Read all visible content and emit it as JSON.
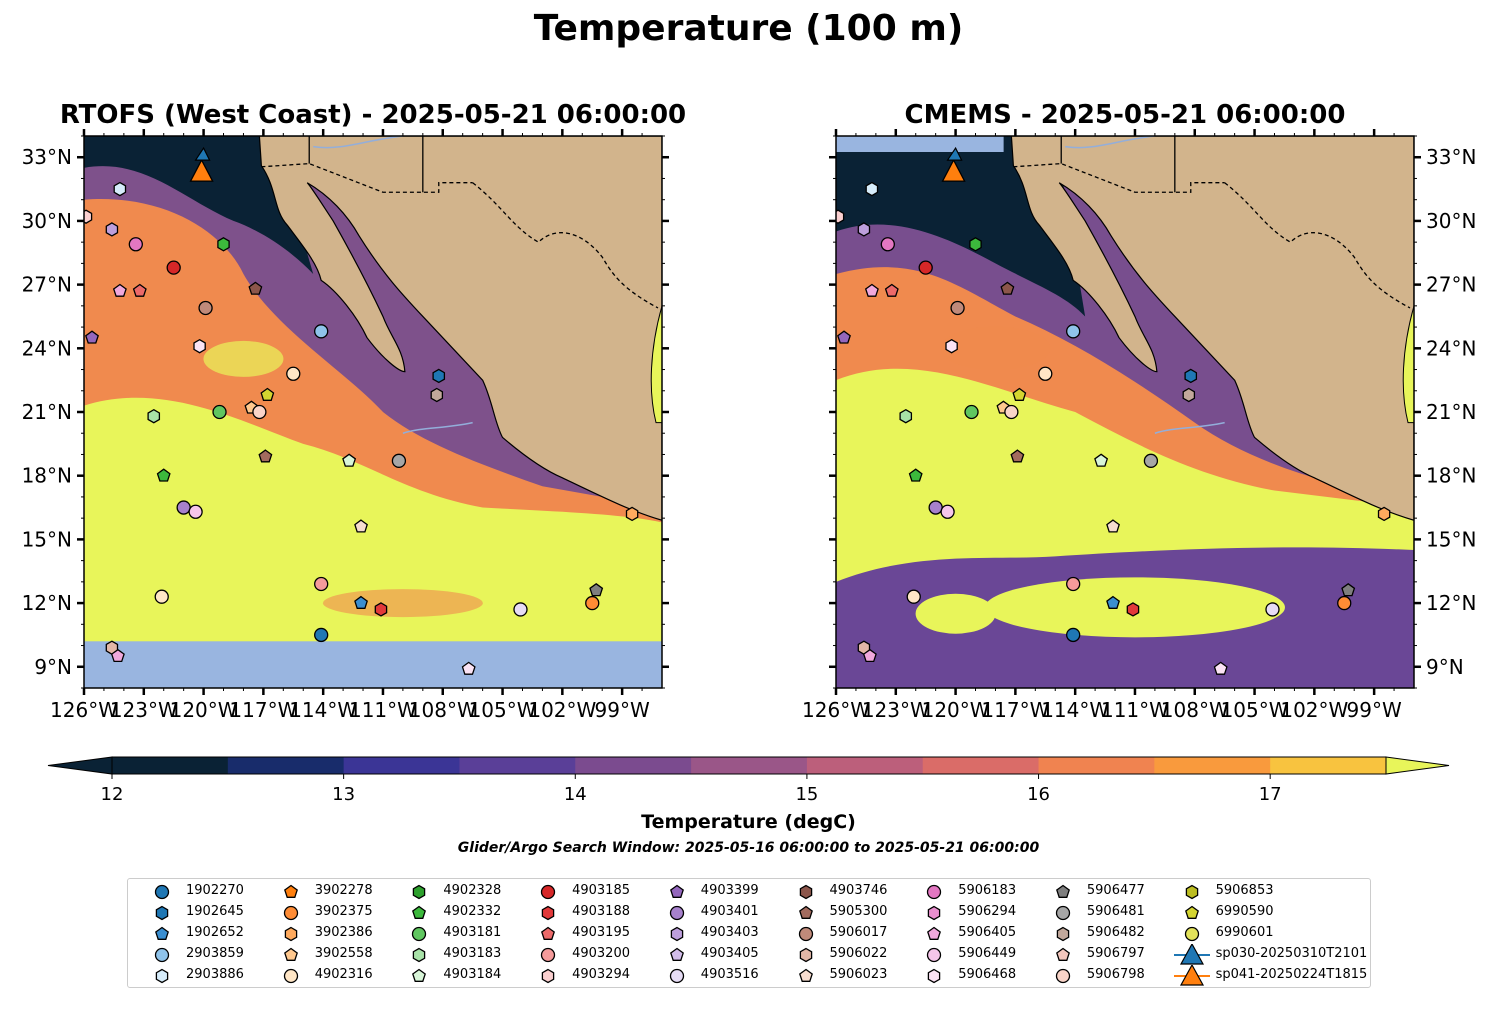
{
  "figure": {
    "title": "Temperature (100 m)",
    "panels": [
      {
        "title": "RTOFS (West Coast) - 2025-05-21 06:00:00",
        "model": "rtofs"
      },
      {
        "title": "CMEMS - 2025-05-21 06:00:00",
        "model": "cmems"
      }
    ],
    "lon_ticks": [
      "126°W",
      "123°W",
      "120°W",
      "117°W",
      "114°W",
      "111°W",
      "108°W",
      "105°W",
      "102°W",
      "99°W"
    ],
    "lat_ticks": [
      "33°N",
      "30°N",
      "27°N",
      "24°N",
      "21°N",
      "18°N",
      "15°N",
      "12°N",
      "9°N"
    ],
    "extent": {
      "lon": [
        -126,
        -97
      ],
      "lat": [
        8,
        34
      ]
    }
  },
  "colorbar": {
    "label": "Temperature (degC)",
    "ticks": [
      "12",
      "13",
      "14",
      "15",
      "16",
      "17"
    ],
    "range": [
      12,
      17.5
    ],
    "colors": [
      "#0a2235",
      "#182c6b",
      "#3b3596",
      "#5a3f98",
      "#7b4b8f",
      "#9a5688",
      "#bc5f7b",
      "#da6c68",
      "#f08350",
      "#f99a3d",
      "#f8c33f",
      "#e8f55a"
    ]
  },
  "search_window": "Glider/Argo Search Window: 2025-05-16 06:00:00 to 2025-05-21 06:00:00",
  "colors": {
    "land": "#d2b48c",
    "no_data": "#99b5e0",
    "warm": "#e8f55a",
    "mid": "#f08a4e",
    "cool": "#6a4796",
    "cold": "#0a2235"
  },
  "legend": [
    {
      "id": "1902270",
      "color": "#1f77b4",
      "marker": "circle"
    },
    {
      "id": "1902645",
      "color": "#1f77b4",
      "marker": "hexagon"
    },
    {
      "id": "1902652",
      "color": "#3a8ed0",
      "marker": "pentagon"
    },
    {
      "id": "2903859",
      "color": "#8fc3ea",
      "marker": "circle"
    },
    {
      "id": "2903886",
      "color": "#d6ecfa",
      "marker": "hexagon"
    },
    {
      "id": "3902278",
      "color": "#ff7f0e",
      "marker": "pentagon"
    },
    {
      "id": "3902375",
      "color": "#ff8c35",
      "marker": "circle"
    },
    {
      "id": "3902386",
      "color": "#ffaa5e",
      "marker": "hexagon"
    },
    {
      "id": "3902558",
      "color": "#ffc88e",
      "marker": "pentagon"
    },
    {
      "id": "4902316",
      "color": "#ffe6c6",
      "marker": "circle"
    },
    {
      "id": "4902328",
      "color": "#2ca02c",
      "marker": "hexagon"
    },
    {
      "id": "4902332",
      "color": "#3cb93c",
      "marker": "pentagon"
    },
    {
      "id": "4903181",
      "color": "#60c760",
      "marker": "circle"
    },
    {
      "id": "4903183",
      "color": "#a8e2a8",
      "marker": "hexagon"
    },
    {
      "id": "4903184",
      "color": "#d8f5d8",
      "marker": "pentagon"
    },
    {
      "id": "4903185",
      "color": "#d62728",
      "marker": "circle"
    },
    {
      "id": "4903188",
      "color": "#e2393a",
      "marker": "hexagon"
    },
    {
      "id": "4903195",
      "color": "#ec6a6a",
      "marker": "pentagon"
    },
    {
      "id": "4903200",
      "color": "#f59b9b",
      "marker": "circle"
    },
    {
      "id": "4903294",
      "color": "#fbd0d0",
      "marker": "hexagon"
    },
    {
      "id": "4903399",
      "color": "#9467bd",
      "marker": "pentagon"
    },
    {
      "id": "4903401",
      "color": "#a781cc",
      "marker": "circle"
    },
    {
      "id": "4903403",
      "color": "#bd9fdc",
      "marker": "hexagon"
    },
    {
      "id": "4903405",
      "color": "#d2bdea",
      "marker": "pentagon"
    },
    {
      "id": "4903516",
      "color": "#e6dcf5",
      "marker": "circle"
    },
    {
      "id": "4903746",
      "color": "#8c564b",
      "marker": "hexagon"
    },
    {
      "id": "5905300",
      "color": "#a36b5e",
      "marker": "pentagon"
    },
    {
      "id": "5906017",
      "color": "#c08a7a",
      "marker": "circle"
    },
    {
      "id": "5906022",
      "color": "#e3b7a7",
      "marker": "hexagon"
    },
    {
      "id": "5906023",
      "color": "#f6dccf",
      "marker": "pentagon"
    },
    {
      "id": "5906183",
      "color": "#e377c2",
      "marker": "circle"
    },
    {
      "id": "5906294",
      "color": "#ea8fcf",
      "marker": "hexagon"
    },
    {
      "id": "5906405",
      "color": "#f0a8dc",
      "marker": "pentagon"
    },
    {
      "id": "5906449",
      "color": "#f6c6ea",
      "marker": "circle"
    },
    {
      "id": "5906468",
      "color": "#fbe3f4",
      "marker": "hexagon"
    },
    {
      "id": "5906477",
      "color": "#7f7f7f",
      "marker": "pentagon"
    },
    {
      "id": "5906481",
      "color": "#a6a6a6",
      "marker": "circle"
    },
    {
      "id": "5906482",
      "color": "#c2a89b",
      "marker": "hexagon"
    },
    {
      "id": "5906797",
      "color": "#f4c7bd",
      "marker": "pentagon"
    },
    {
      "id": "5906798",
      "color": "#f9d4c8",
      "marker": "circle"
    },
    {
      "id": "5906853",
      "color": "#bcbd22",
      "marker": "hexagon"
    },
    {
      "id": "6990590",
      "color": "#d4d530",
      "marker": "pentagon"
    },
    {
      "id": "6990601",
      "color": "#e3e35a",
      "marker": "circle"
    },
    {
      "id": "sp030-20250310T2101",
      "color": "#1f77b4",
      "marker": "triangle"
    },
    {
      "id": "sp041-20250224T1815",
      "color": "#ff7f0e",
      "marker": "triangle"
    }
  ],
  "floats": [
    {
      "lon": -124.2,
      "lat": 31.5,
      "color": "#d6ecfa",
      "marker": "hexagon"
    },
    {
      "lon": -125.9,
      "lat": 30.2,
      "color": "#fbd0d0",
      "marker": "hexagon"
    },
    {
      "lon": -124.6,
      "lat": 29.6,
      "color": "#bd9fdc",
      "marker": "hexagon"
    },
    {
      "lon": -123.4,
      "lat": 28.9,
      "color": "#e377c2",
      "marker": "circle"
    },
    {
      "lon": -119.0,
      "lat": 28.9,
      "color": "#3cb93c",
      "marker": "hexagon"
    },
    {
      "lon": -121.5,
      "lat": 27.8,
      "color": "#d62728",
      "marker": "circle"
    },
    {
      "lon": -124.2,
      "lat": 26.7,
      "color": "#f0a8dc",
      "marker": "pentagon"
    },
    {
      "lon": -123.2,
      "lat": 26.7,
      "color": "#ec6a6a",
      "marker": "pentagon"
    },
    {
      "lon": -117.4,
      "lat": 26.8,
      "color": "#8c564b",
      "marker": "pentagon"
    },
    {
      "lon": -119.9,
      "lat": 25.9,
      "color": "#c08a7a",
      "marker": "circle"
    },
    {
      "lon": -125.6,
      "lat": 24.5,
      "color": "#9467bd",
      "marker": "pentagon"
    },
    {
      "lon": -120.2,
      "lat": 24.1,
      "color": "#fbe3f4",
      "marker": "hexagon"
    },
    {
      "lon": -114.1,
      "lat": 24.8,
      "color": "#8fc3ea",
      "marker": "circle"
    },
    {
      "lon": -115.5,
      "lat": 22.8,
      "color": "#ffe6c6",
      "marker": "circle"
    },
    {
      "lon": -108.2,
      "lat": 22.7,
      "color": "#1f77b4",
      "marker": "hexagon"
    },
    {
      "lon": -108.3,
      "lat": 21.8,
      "color": "#c2a89b",
      "marker": "hexagon"
    },
    {
      "lon": -116.8,
      "lat": 21.8,
      "color": "#d4d530",
      "marker": "pentagon"
    },
    {
      "lon": -117.6,
      "lat": 21.2,
      "color": "#ffc88e",
      "marker": "pentagon"
    },
    {
      "lon": -117.2,
      "lat": 21.0,
      "color": "#f9d4c8",
      "marker": "circle"
    },
    {
      "lon": -119.2,
      "lat": 21.0,
      "color": "#60c760",
      "marker": "circle"
    },
    {
      "lon": -122.5,
      "lat": 20.8,
      "color": "#a8e2a8",
      "marker": "hexagon"
    },
    {
      "lon": -116.9,
      "lat": 18.9,
      "color": "#a36b5e",
      "marker": "pentagon"
    },
    {
      "lon": -112.7,
      "lat": 18.7,
      "color": "#d8f5d8",
      "marker": "pentagon"
    },
    {
      "lon": -110.2,
      "lat": 18.7,
      "color": "#a6a6a6",
      "marker": "circle"
    },
    {
      "lon": -122.0,
      "lat": 18.0,
      "color": "#3cb93c",
      "marker": "pentagon"
    },
    {
      "lon": -121.0,
      "lat": 16.5,
      "color": "#a781cc",
      "marker": "circle"
    },
    {
      "lon": -120.4,
      "lat": 16.3,
      "color": "#f6c6ea",
      "marker": "circle"
    },
    {
      "lon": -112.1,
      "lat": 15.6,
      "color": "#f6dccf",
      "marker": "pentagon"
    },
    {
      "lon": -98.5,
      "lat": 16.2,
      "color": "#ffaa5e",
      "marker": "hexagon"
    },
    {
      "lon": -114.1,
      "lat": 12.9,
      "color": "#f59b9b",
      "marker": "circle"
    },
    {
      "lon": -122.1,
      "lat": 12.3,
      "color": "#ffe6c6",
      "marker": "circle"
    },
    {
      "lon": -112.1,
      "lat": 12.0,
      "color": "#3a8ed0",
      "marker": "pentagon"
    },
    {
      "lon": -111.1,
      "lat": 11.7,
      "color": "#e2393a",
      "marker": "hexagon"
    },
    {
      "lon": -100.3,
      "lat": 12.6,
      "color": "#7f7f7f",
      "marker": "pentagon"
    },
    {
      "lon": -100.5,
      "lat": 12.0,
      "color": "#ff8c35",
      "marker": "circle"
    },
    {
      "lon": -104.1,
      "lat": 11.7,
      "color": "#e6dcf5",
      "marker": "circle"
    },
    {
      "lon": -114.1,
      "lat": 10.5,
      "color": "#1f77b4",
      "marker": "circle"
    },
    {
      "lon": -124.6,
      "lat": 9.9,
      "color": "#e3b7a7",
      "marker": "hexagon"
    },
    {
      "lon": -124.3,
      "lat": 9.5,
      "color": "#f0a8dc",
      "marker": "pentagon"
    },
    {
      "lon": -106.7,
      "lat": 8.9,
      "color": "#fbe3f4",
      "marker": "pentagon"
    }
  ],
  "gliders": [
    {
      "lon": -120.1,
      "lat": 32.3,
      "color": "#ff7f0e"
    }
  ]
}
